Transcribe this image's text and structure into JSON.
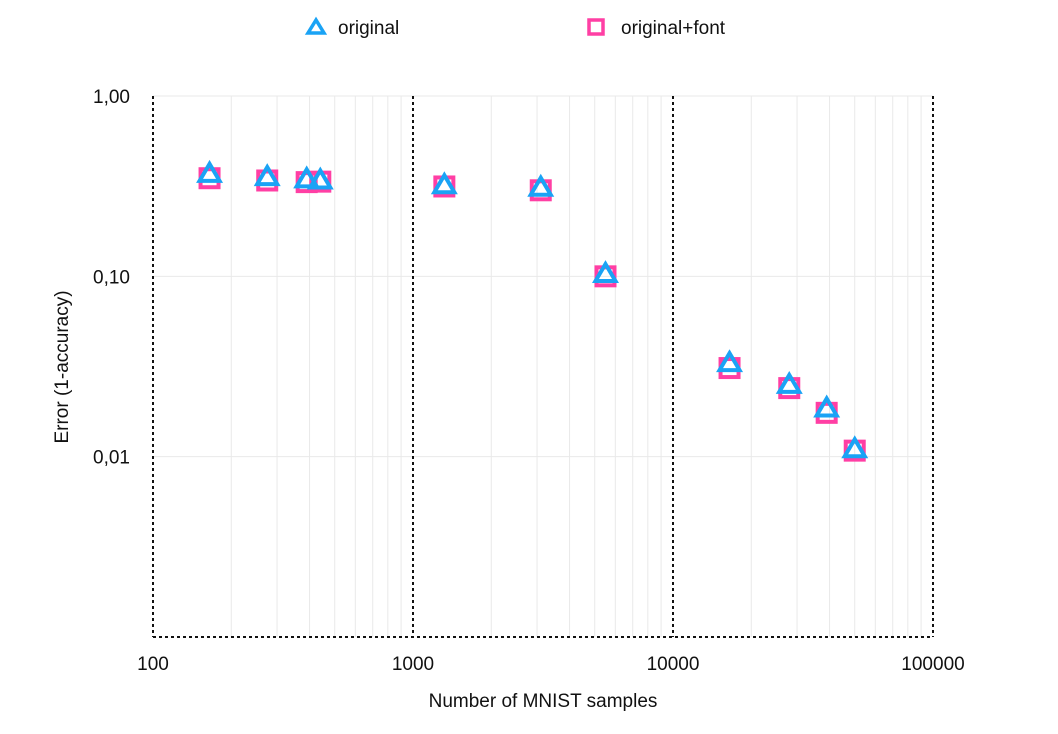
{
  "chart_data": {
    "type": "scatter",
    "xlabel": "Number of MNIST samples",
    "ylabel": "Error (1-accuracy)",
    "x_scale": "log",
    "y_scale": "log",
    "xlim": [
      100,
      100000
    ],
    "ylim": [
      0.001,
      1.0
    ],
    "x_ticks": [
      {
        "value": 100,
        "label": "100"
      },
      {
        "value": 1000,
        "label": "1000"
      },
      {
        "value": 10000,
        "label": "10000"
      },
      {
        "value": 100000,
        "label": "100000"
      }
    ],
    "y_ticks": [
      {
        "value": 1.0,
        "label": "1,00"
      },
      {
        "value": 0.1,
        "label": "0,10"
      },
      {
        "value": 0.01,
        "label": "0,01"
      }
    ],
    "grid": true,
    "legend_position": "top",
    "series": [
      {
        "name": "original",
        "marker": "triangle",
        "color": "#1aa3f5",
        "points": [
          [
            165,
            0.37
          ],
          [
            275,
            0.355
          ],
          [
            390,
            0.345
          ],
          [
            440,
            0.34
          ],
          [
            1320,
            0.32
          ],
          [
            3100,
            0.31
          ],
          [
            5500,
            0.103
          ],
          [
            16500,
            0.033
          ],
          [
            28000,
            0.025
          ],
          [
            39000,
            0.0185
          ],
          [
            50000,
            0.011
          ]
        ]
      },
      {
        "name": "original+font",
        "marker": "square",
        "color": "#ff3fa4",
        "points": [
          [
            165,
            0.35
          ],
          [
            275,
            0.34
          ],
          [
            390,
            0.333
          ],
          [
            440,
            0.335
          ],
          [
            1320,
            0.315
          ],
          [
            3100,
            0.3
          ],
          [
            5500,
            0.1
          ],
          [
            16500,
            0.031
          ],
          [
            28000,
            0.024
          ],
          [
            39000,
            0.0175
          ],
          [
            50000,
            0.0108
          ]
        ]
      }
    ]
  }
}
